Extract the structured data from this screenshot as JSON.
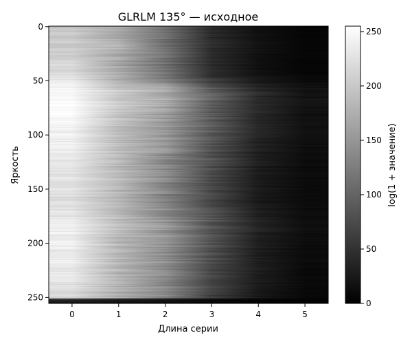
{
  "chart_data": {
    "type": "heatmap",
    "title": "GLRLM 135° — исходное",
    "xlabel": "Длина серии",
    "ylabel": "Яркость",
    "xlim": [
      -0.5,
      5.5
    ],
    "ylim": [
      255.5,
      -0.5
    ],
    "x_ticks": [
      0,
      1,
      2,
      3,
      4,
      5
    ],
    "y_ticks": [
      0,
      50,
      100,
      150,
      200,
      250
    ],
    "rows": 256,
    "x": [
      0,
      1,
      2,
      3,
      4,
      5
    ],
    "y_profile": [
      0,
      20,
      40,
      50,
      60,
      75,
      100,
      130,
      160,
      170,
      185,
      200,
      220,
      240,
      250,
      252,
      255
    ],
    "values_by_run_length": [
      {
        "x": 0,
        "values": [
          195,
          205,
          215,
          230,
          250,
          252,
          240,
          230,
          220,
          225,
          240,
          238,
          235,
          225,
          215,
          40,
          20
        ]
      },
      {
        "x": 1,
        "values": [
          170,
          175,
          165,
          175,
          205,
          200,
          190,
          185,
          180,
          182,
          190,
          185,
          182,
          178,
          175,
          30,
          15
        ]
      },
      {
        "x": 2,
        "values": [
          110,
          115,
          110,
          130,
          175,
          165,
          150,
          140,
          130,
          140,
          150,
          145,
          140,
          135,
          130,
          20,
          10
        ]
      },
      {
        "x": 3,
        "values": [
          40,
          45,
          40,
          60,
          100,
          95,
          85,
          80,
          70,
          80,
          85,
          80,
          75,
          70,
          65,
          10,
          5
        ]
      },
      {
        "x": 4,
        "values": [
          15,
          18,
          15,
          25,
          45,
          40,
          35,
          30,
          25,
          30,
          35,
          30,
          28,
          25,
          22,
          5,
          2
        ]
      },
      {
        "x": 5,
        "values": [
          5,
          6,
          5,
          10,
          20,
          18,
          15,
          12,
          10,
          12,
          15,
          12,
          10,
          9,
          8,
          2,
          0
        ]
      }
    ],
    "colormap": "gray",
    "colorbar": {
      "label": "log(1 + значение)",
      "range": [
        0,
        255
      ],
      "ticks": [
        0,
        50,
        100,
        150,
        200,
        250
      ]
    }
  }
}
